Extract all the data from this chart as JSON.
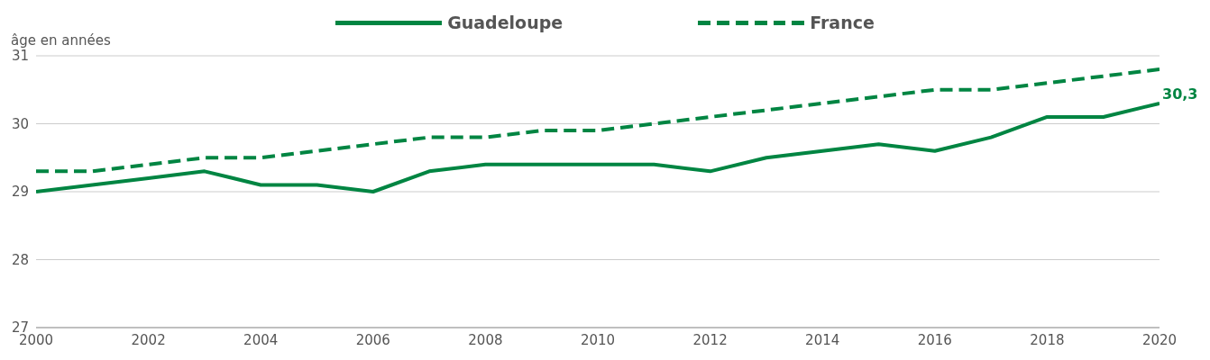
{
  "chart_data": {
    "type": "line",
    "ylabel": "âge en années",
    "x": [
      2000,
      2001,
      2002,
      2003,
      2004,
      2005,
      2006,
      2007,
      2008,
      2009,
      2010,
      2011,
      2012,
      2013,
      2014,
      2015,
      2016,
      2017,
      2018,
      2019,
      2020
    ],
    "series": [
      {
        "name": "Guadeloupe",
        "color": "#008542",
        "line_style": "solid",
        "values": [
          29.0,
          29.1,
          29.2,
          29.3,
          29.1,
          29.1,
          29.0,
          29.3,
          29.4,
          29.4,
          29.4,
          29.4,
          29.3,
          29.5,
          29.6,
          29.7,
          29.6,
          29.8,
          30.1,
          30.1,
          30.3
        ]
      },
      {
        "name": "France",
        "color": "#008542",
        "line_style": "dashed",
        "values": [
          29.3,
          29.3,
          29.4,
          29.5,
          29.5,
          29.6,
          29.7,
          29.8,
          29.8,
          29.9,
          29.9,
          30.0,
          30.1,
          30.2,
          30.3,
          30.4,
          30.5,
          30.5,
          30.6,
          30.7,
          30.8
        ]
      }
    ],
    "xlim": [
      2000,
      2020
    ],
    "xticks": [
      2000,
      2002,
      2004,
      2006,
      2008,
      2010,
      2012,
      2014,
      2016,
      2018,
      2020
    ],
    "ylim": [
      27,
      31
    ],
    "yticks": [
      27,
      28,
      29,
      30,
      31
    ],
    "grid": "y",
    "legend": "top",
    "marker": "none",
    "annotations": [
      {
        "text": "30,3",
        "x": 2020,
        "y": 30.3
      }
    ]
  }
}
